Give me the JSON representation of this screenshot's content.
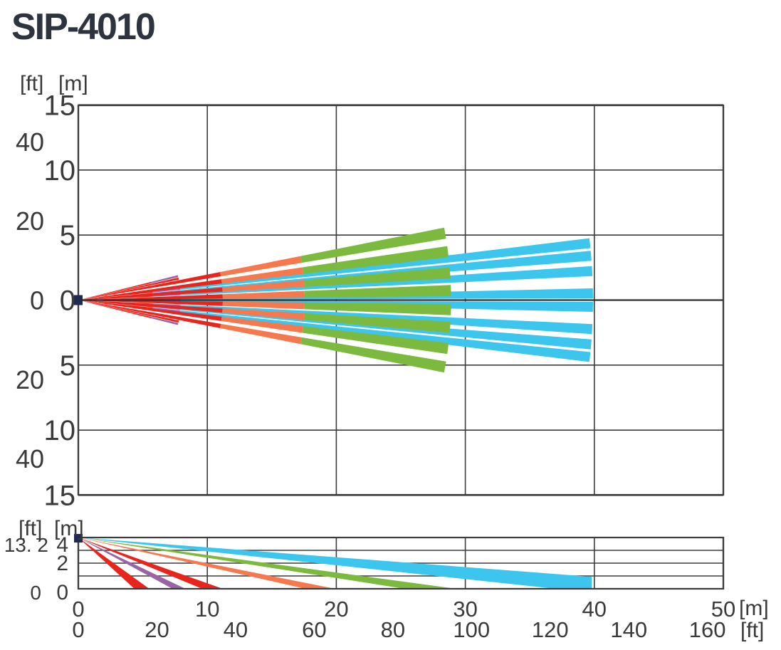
{
  "title": "SIP-4010",
  "colors": {
    "red": "#e8251d",
    "orange": "#f5794d",
    "green": "#7cba3f",
    "cyan": "#3cc6ee",
    "purple": "#9a63a5",
    "navy": "#1f2a52",
    "grid": "#3c3c3c",
    "axis": "#2f2f2f",
    "text": "#3a3a3a",
    "title": "#2e3340"
  },
  "x_axis": {
    "m_ticks": [
      "0",
      "10",
      "20",
      "30",
      "40",
      "50"
    ],
    "m_values": [
      0,
      10,
      20,
      30,
      40,
      50
    ],
    "m_unit": "[m]",
    "ft_ticks": [
      "0",
      "20",
      "40",
      "60",
      "80",
      "100",
      "120",
      "140",
      "160"
    ],
    "ft_values": [
      0,
      20,
      40,
      60,
      80,
      100,
      120,
      140,
      160
    ],
    "ft_unit": "[ft]"
  },
  "chart_data": [
    {
      "type": "area",
      "name": "top-view-detection-pattern",
      "x_range_m": [
        0,
        50
      ],
      "x_grid_step_m": 10,
      "y_range_m": [
        -15,
        15
      ],
      "y_grid_step_m": 5,
      "y_units": [
        "[ft]",
        "[m]"
      ],
      "y_ticks_m": [
        {
          "label": "15",
          "m": 15
        },
        {
          "label": "10",
          "m": 10
        },
        {
          "label": "5",
          "m": 5
        },
        {
          "label": "0",
          "m": 0
        },
        {
          "label": "5",
          "m": -5
        },
        {
          "label": "10",
          "m": -10
        },
        {
          "label": "15",
          "m": -15
        }
      ],
      "y_ticks_ft": [
        {
          "label": "40",
          "ft": 40
        },
        {
          "label": "20",
          "ft": 20
        },
        {
          "label": "0",
          "ft": 0
        },
        {
          "label": "20",
          "ft": -20
        },
        {
          "label": "40",
          "ft": -40
        }
      ],
      "finger_half_width_deg_wide": 0.85,
      "finger_half_width_deg_narrow": 0.55,
      "mirrored": true,
      "fingers": [
        {
          "angle_deg": 13.4,
          "width": "narrow",
          "segments": [
            {
              "from": 0,
              "to": 5.8,
              "color": "red"
            },
            {
              "from": 5.8,
              "to": 7.95,
              "color": "purple"
            }
          ]
        },
        {
          "angle_deg": 12.0,
          "width": "narrow",
          "segments": [
            {
              "from": 0,
              "to": 7.95,
              "color": "red"
            }
          ]
        },
        {
          "angle_deg": 6.3,
          "width": "narrow",
          "segments": [
            {
              "from": 0,
              "to": 5.8,
              "color": "red"
            },
            {
              "from": 5.8,
              "to": 7.95,
              "color": "purple"
            },
            {
              "from": 7.95,
              "to": 39.9,
              "color": "cyan"
            }
          ]
        },
        {
          "angle_deg": 4.9,
          "width": "narrow",
          "segments": [
            {
              "from": 0,
              "to": 5.8,
              "color": "red"
            },
            {
              "from": 5.8,
              "to": 7.95,
              "color": "purple"
            },
            {
              "from": 7.95,
              "to": 39.9,
              "color": "cyan"
            }
          ]
        },
        {
          "angle_deg": 3.2,
          "width": "narrow",
          "segments": [
            {
              "from": 0,
              "to": 5.8,
              "color": "red"
            },
            {
              "from": 5.8,
              "to": 7.95,
              "color": "purple"
            },
            {
              "from": 7.95,
              "to": 39.9,
              "color": "cyan"
            }
          ]
        },
        {
          "angle_deg": 0.75,
          "width": "narrow",
          "segments": [
            {
              "from": 0,
              "to": 5.8,
              "color": "red"
            },
            {
              "from": 5.8,
              "to": 7.95,
              "color": "purple"
            },
            {
              "from": 7.95,
              "to": 39.9,
              "color": "cyan"
            }
          ]
        },
        {
          "angle_deg": 10.25,
          "width": "wide",
          "segments": [
            {
              "from": 0,
              "to": 11.2,
              "color": "red"
            },
            {
              "from": 11.2,
              "to": 17.55,
              "color": "orange"
            },
            {
              "from": 17.55,
              "to": 28.9,
              "color": "green"
            }
          ]
        },
        {
          "angle_deg": 7.4,
          "width": "wide",
          "segments": [
            {
              "from": 0,
              "to": 11.2,
              "color": "red"
            },
            {
              "from": 11.2,
              "to": 17.55,
              "color": "orange"
            },
            {
              "from": 17.55,
              "to": 28.9,
              "color": "green"
            }
          ]
        },
        {
          "angle_deg": 4.15,
          "width": "wide",
          "segments": [
            {
              "from": 0,
              "to": 11.2,
              "color": "red"
            },
            {
              "from": 11.2,
              "to": 17.55,
              "color": "orange"
            },
            {
              "from": 17.55,
              "to": 28.9,
              "color": "green"
            }
          ]
        },
        {
          "angle_deg": 1.45,
          "width": "wide",
          "segments": [
            {
              "from": 0,
              "to": 11.2,
              "color": "red"
            },
            {
              "from": 11.2,
              "to": 17.55,
              "color": "orange"
            },
            {
              "from": 17.55,
              "to": 28.9,
              "color": "green"
            }
          ]
        }
      ]
    },
    {
      "type": "area",
      "name": "side-view-detection-pattern",
      "x_range_m": [
        0,
        50
      ],
      "x_grid_step_m": 10,
      "y_range_m": [
        0,
        4
      ],
      "y_grid_step_m": 1,
      "mount_height_m": 4,
      "y_units": [
        "[ft]",
        "[m]"
      ],
      "y_ticks_m": [
        {
          "label": "4",
          "m": 4
        },
        {
          "label": "2",
          "m": 2
        },
        {
          "label": "0",
          "m": 0
        }
      ],
      "y_ticks_ft": [
        {
          "label": "13. 2",
          "m": 4
        },
        {
          "label": "0",
          "m": 0
        }
      ],
      "beams": [
        {
          "color": "cyan",
          "ground_from": 37.0,
          "ground_to": 52.0,
          "cap": 39.8
        },
        {
          "color": "green",
          "ground_from": 25.3,
          "ground_to": 29.3
        },
        {
          "color": "orange",
          "ground_from": 17.6,
          "ground_to": 19.9
        },
        {
          "color": "red",
          "ground_from": 9.6,
          "ground_to": 11.2
        },
        {
          "color": "purple",
          "ground_from": 7.3,
          "ground_to": 8.3
        },
        {
          "color": "red",
          "ground_from": 4.35,
          "ground_to": 5.5
        }
      ]
    }
  ]
}
